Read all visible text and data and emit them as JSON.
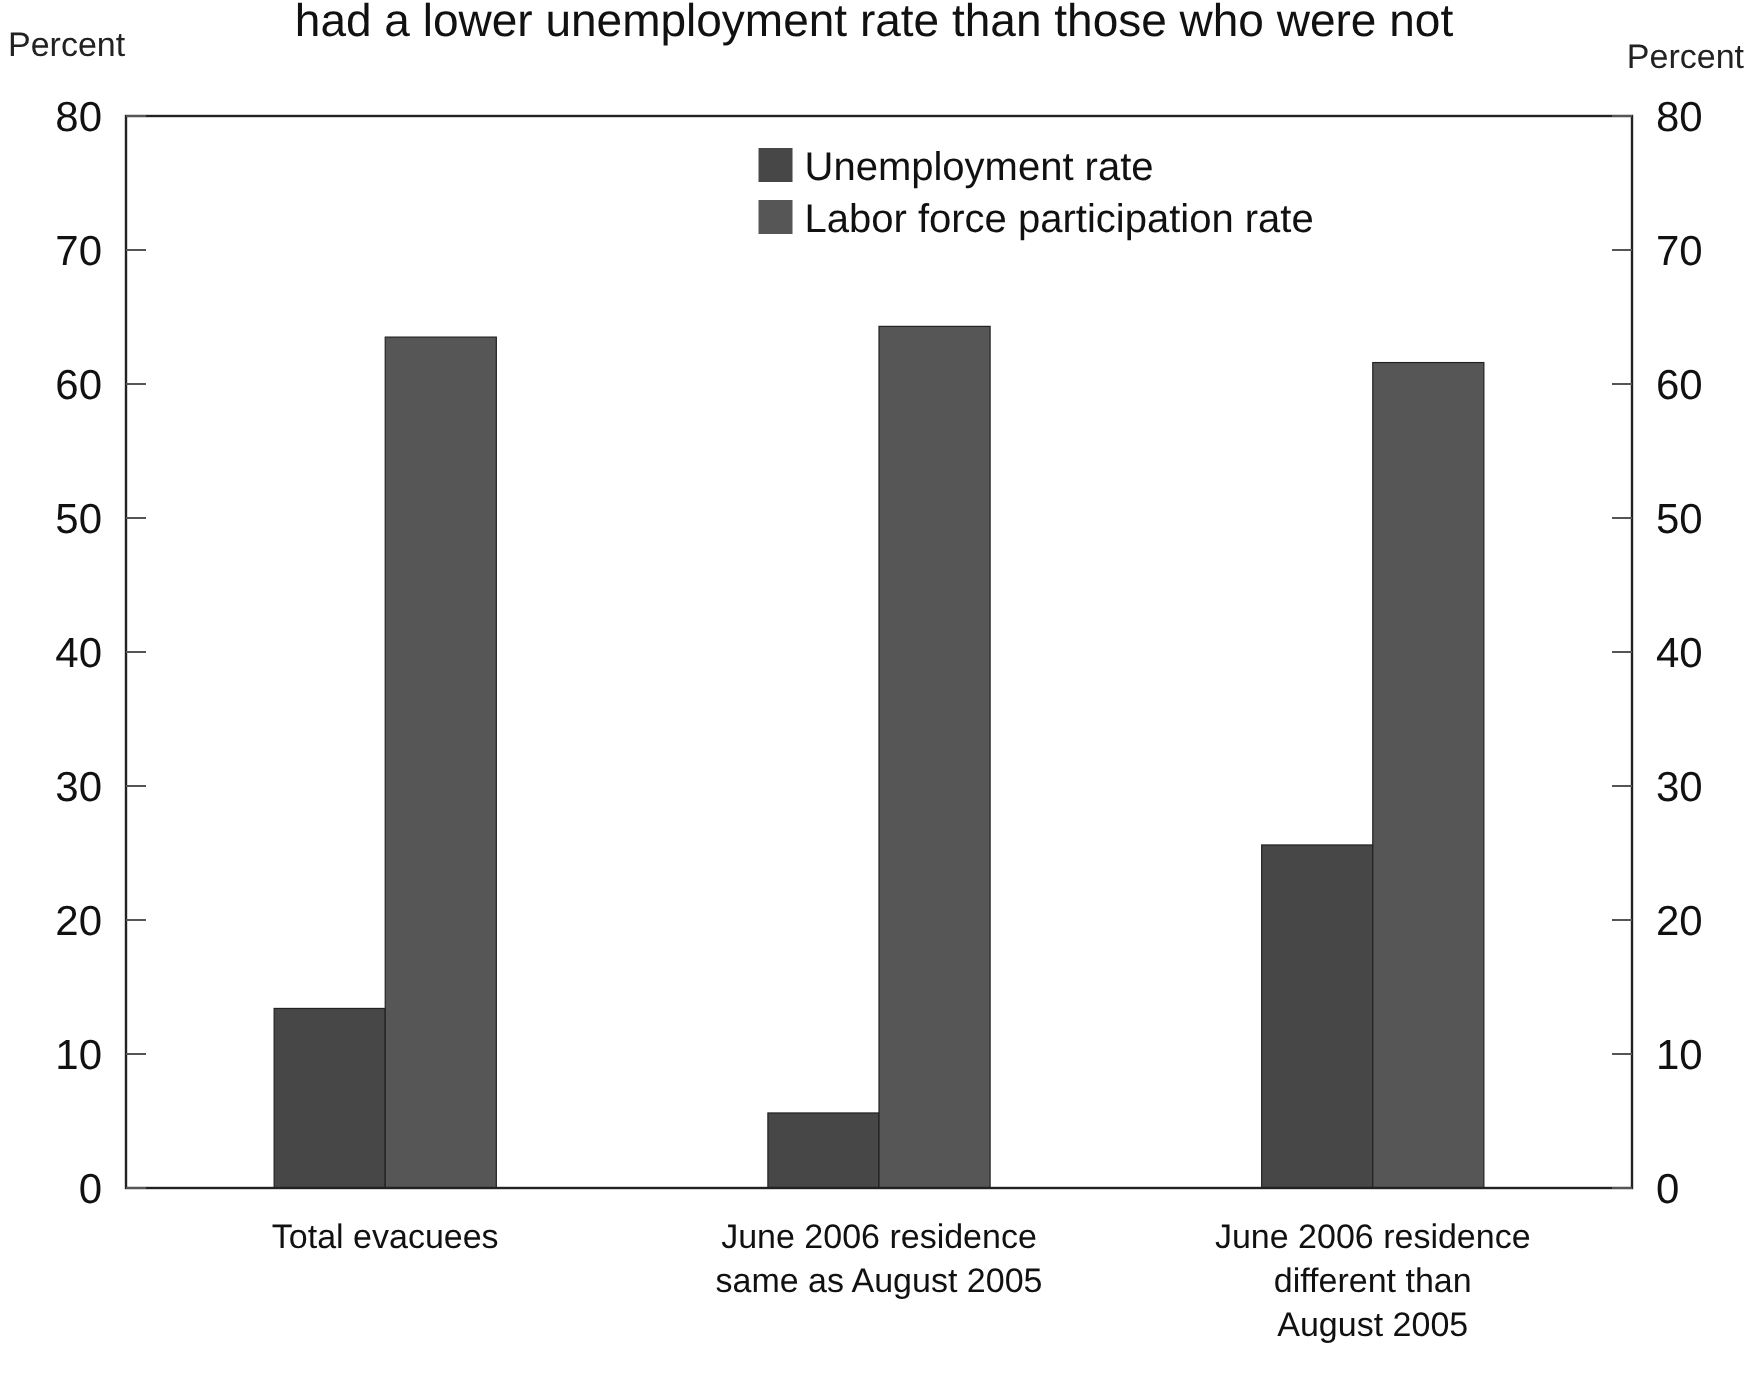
{
  "chart_data": {
    "type": "bar",
    "title": "had a lower unemployment rate than those who were not",
    "ylabel": "Percent",
    "y2label": "Percent",
    "categories": [
      "Total evacuees",
      "June 2006 residence same as August 2005",
      "June 2006 residence different than August 2005"
    ],
    "series": [
      {
        "name": "Unemployment rate",
        "color": "#474747",
        "values": [
          13.4,
          5.6,
          25.6
        ]
      },
      {
        "name": "Labor force participation rate",
        "color": "#565656",
        "values": [
          63.5,
          64.3,
          61.6
        ]
      }
    ],
    "ylim": [
      0,
      80
    ],
    "yticks": [
      0,
      10,
      20,
      30,
      40,
      50,
      60,
      70,
      80
    ],
    "y2lim": [
      0,
      80
    ],
    "y2ticks": [
      0,
      10,
      20,
      30,
      40,
      50,
      60,
      70,
      80
    ],
    "grid": false,
    "legend": "top"
  }
}
